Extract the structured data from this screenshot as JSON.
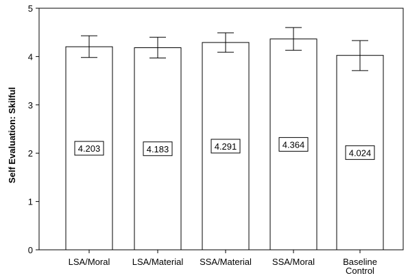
{
  "chart_data": {
    "type": "bar",
    "categories": [
      "LSA/Moral",
      "LSA/Material",
      "SSA/Material",
      "SSA/Moral",
      "Baseline Control"
    ],
    "values": [
      4.203,
      4.183,
      4.291,
      4.364,
      4.024
    ],
    "value_labels": [
      "4.203",
      "4.183",
      "4.291",
      "4.364",
      "4.024"
    ],
    "error_bars": [
      {
        "low": 3.98,
        "high": 4.43
      },
      {
        "low": 3.97,
        "high": 4.4
      },
      {
        "low": 4.09,
        "high": 4.49
      },
      {
        "low": 4.13,
        "high": 4.6
      },
      {
        "low": 3.71,
        "high": 4.33
      }
    ],
    "title": "",
    "xlabel": "",
    "ylabel": "Self Evaluation: Skilful",
    "ylim": [
      0,
      5
    ],
    "yticks": [
      "0",
      "1",
      "2",
      "3",
      "4",
      "5"
    ],
    "grid": false,
    "bar_color": "#ffffff",
    "stroke_color": "#000000"
  }
}
